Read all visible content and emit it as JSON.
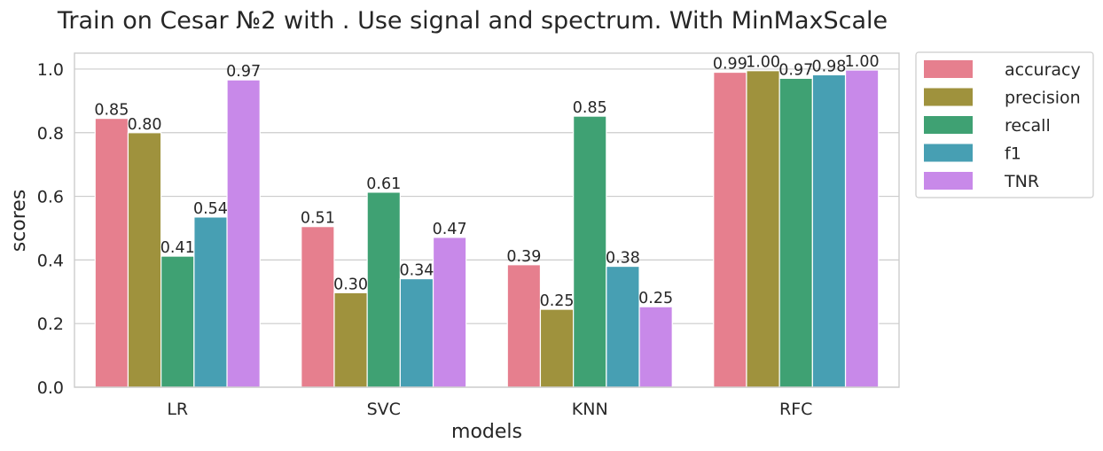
{
  "chart_data": {
    "type": "bar",
    "title": "Train on Cesar №2 with . Use signal and spectrum. With MinMaxScale",
    "xlabel": "models",
    "ylabel": "scores",
    "categories": [
      "LR",
      "SVC",
      "KNN",
      "RFC"
    ],
    "ylim": [
      0,
      1.05
    ],
    "yticks": [
      0.0,
      0.2,
      0.4,
      0.6,
      0.8,
      1.0
    ],
    "ytick_labels": [
      "0.0",
      "0.2",
      "0.4",
      "0.6",
      "0.8",
      "1.0"
    ],
    "grid": "horizontal",
    "legend_position": "outside-right",
    "series": [
      {
        "name": "accuracy",
        "color": "#e67f8e",
        "values": [
          0.845,
          0.505,
          0.385,
          0.99
        ],
        "labels": [
          "0.85",
          "0.51",
          "0.39",
          "0.99"
        ]
      },
      {
        "name": "precision",
        "color": "#9f923d",
        "values": [
          0.8,
          0.297,
          0.245,
          0.995
        ],
        "labels": [
          "0.80",
          "0.30",
          "0.25",
          "1.00"
        ]
      },
      {
        "name": "recall",
        "color": "#3fa173",
        "values": [
          0.412,
          0.613,
          0.852,
          0.971
        ],
        "labels": [
          "0.41",
          "0.61",
          "0.85",
          "0.97"
        ]
      },
      {
        "name": "f1",
        "color": "#479fb3",
        "values": [
          0.535,
          0.341,
          0.38,
          0.982
        ],
        "labels": [
          "0.54",
          "0.34",
          "0.38",
          "0.98"
        ]
      },
      {
        "name": "TNR",
        "color": "#c889e9",
        "values": [
          0.966,
          0.471,
          0.253,
          0.997
        ],
        "labels": [
          "0.97",
          "0.47",
          "0.25",
          "1.00"
        ]
      }
    ]
  }
}
